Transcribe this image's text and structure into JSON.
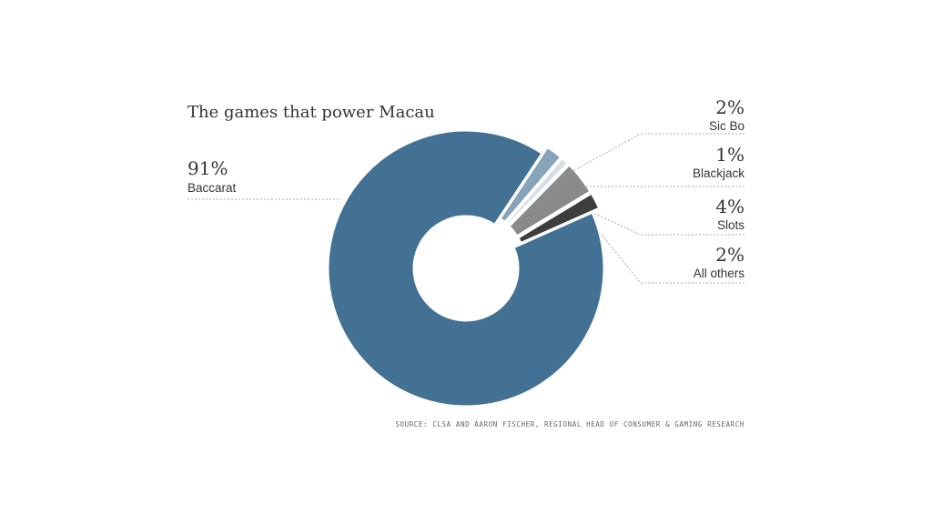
{
  "chart_data": {
    "type": "pie",
    "variant": "donut",
    "title": "The games that power Macau",
    "slices": [
      {
        "label": "Baccarat",
        "display": "91%",
        "value": 91,
        "color": "#437193"
      },
      {
        "label": "Sic Bo",
        "display": "2%",
        "value": 2,
        "color": "#86a3ba"
      },
      {
        "label": "Blackjack",
        "display": "1%",
        "value": 1,
        "color": "#d9dee3"
      },
      {
        "label": "Slots",
        "display": "4%",
        "value": 4,
        "color": "#8a8a8a"
      },
      {
        "label": "All others",
        "display": "2%",
        "value": 2,
        "color": "#3d3d3d"
      }
    ],
    "source": "SOURCE: CLSA AND AARON FISCHER, REGIONAL HEAD OF CONSUMER & GAMING RESEARCH",
    "legend": "callouts"
  }
}
